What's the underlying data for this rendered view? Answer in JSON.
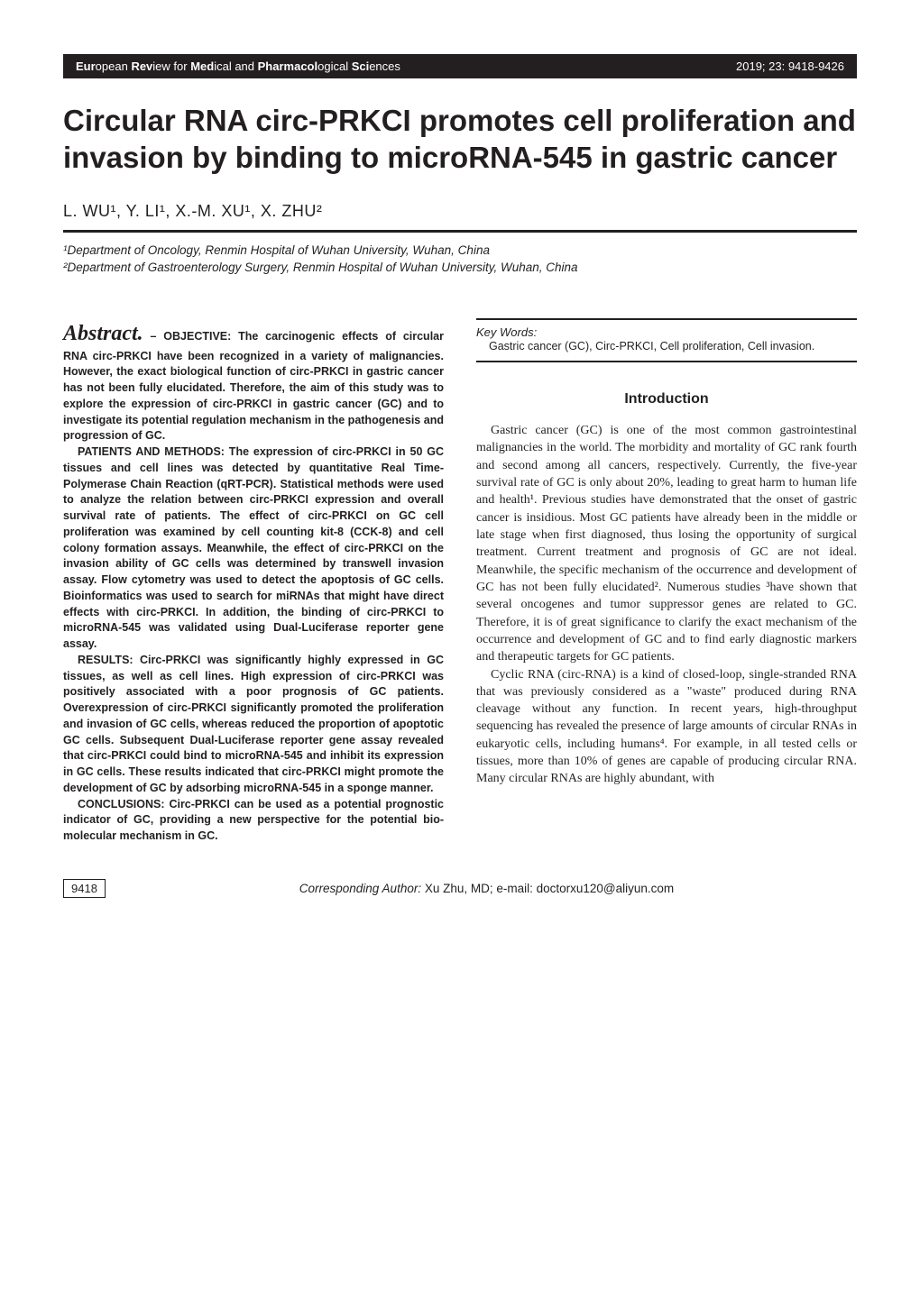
{
  "header": {
    "journal_bold1": "Eur",
    "journal_plain1": "opean ",
    "journal_bold2": "Rev",
    "journal_plain2": "iew for ",
    "journal_bold3": "Med",
    "journal_plain3": "ical and ",
    "journal_bold4": "Pharmacol",
    "journal_plain4": "ogical ",
    "journal_bold5": "Sci",
    "journal_plain5": "ences",
    "issue": "2019; 23: 9418-9426"
  },
  "title": "Circular RNA circ-PRKCI promotes cell proliferation and invasion by binding to microRNA-545 in gastric cancer",
  "authors": "L. WU¹, Y. LI¹, X.-M. XU¹, X. ZHU²",
  "affiliations": {
    "a1": "¹Department of Oncology, Renmin Hospital of Wuhan University, Wuhan, China",
    "a2": "²Department of Gastroenterology Surgery, Renmin Hospital of Wuhan University, Wuhan, China"
  },
  "abstract": {
    "label": "Abstract.",
    "objective_label": " – OBJECTIVE:",
    "objective": " The carcinogenic effects of circular RNA circ-PRKCI have been recognized in a variety of malignancies. However, the exact biological function of circ-PRKCI in gastric cancer has not been fully elucidated. Therefore, the aim of this study was to explore the expression of circ-PRKCI in gastric cancer (GC) and to investigate its potential regulation mechanism in the pathogenesis and progression of GC.",
    "patients_label": "PATIENTS AND METHODS:",
    "patients": " The expression of circ-PRKCI in 50 GC tissues and cell lines was detected by quantitative Real Time-Polymerase Chain Reaction (qRT-PCR). Statistical methods were used to analyze the relation between circ-PRKCI expression and overall survival rate of patients. The effect of circ-PRKCI on GC cell proliferation was examined by cell counting kit-8 (CCK-8) and cell colony formation assays. Meanwhile, the effect of circ-PRKCI on the invasion ability of GC cells was determined by transwell invasion assay. Flow cytometry was used to detect the apoptosis of GC cells. Bioinformatics was used to search for miRNAs that might have direct effects with circ-PRKCI. In addition, the binding of circ-PRKCI to microRNA-545 was validated using Dual-Luciferase reporter gene assay.",
    "results_label": "RESULTS:",
    "results": " Circ-PRKCI was significantly highly expressed in GC tissues, as well as cell lines. High expression of circ-PRKCI was positively associated with a poor prognosis of GC patients. Overexpression of circ-PRKCI significantly promoted the proliferation and invasion of GC cells, whereas reduced the proportion of apoptotic GC cells. Subsequent Dual-Luciferase reporter gene assay revealed that circ-PRKCI could bind to microRNA-545 and inhibit its expression in GC cells. These results indicated that circ-PRKCI might promote the development of GC by adsorbing microRNA-545 in a sponge manner.",
    "conclusions_label": "CONCLUSIONS:",
    "conclusions": " Circ-PRKCI can be used as a potential prognostic indicator of GC, providing a new perspective for the potential bio-molecular mechanism in GC."
  },
  "keywords": {
    "label": "Key Words:",
    "text": "Gastric cancer (GC), Circ-PRKCI, Cell proliferation, Cell invasion."
  },
  "intro": {
    "heading": "Introduction",
    "p1": "Gastric cancer (GC) is one of the most common gastrointestinal malignancies in the world. The morbidity and mortality of GC rank fourth and second among all cancers, respectively. Currently, the five-year survival rate of GC is only about 20%, leading to great harm to human life and health¹. Previous studies have demonstrated that the onset of gastric cancer is insidious. Most GC patients have already been in the middle or late stage when first diagnosed, thus losing the opportunity of surgical treatment. Current treatment and prognosis of GC are not ideal. Meanwhile, the specific mechanism of the occurrence and development of GC has not been fully elucidated². Numerous studies ³have shown that several oncogenes and tumor suppressor genes are related to GC. Therefore, it is of great significance to clarify the exact mechanism of the occurrence and development of GC and to find early diagnostic markers and therapeutic targets for GC patients.",
    "p2": "Cyclic RNA (circ-RNA) is a kind of closed-loop, single-stranded RNA that was previously considered as a \"waste\" produced during RNA cleavage without any function. In recent years, high-throughput sequencing has revealed the presence of large amounts of circular RNAs in eukaryotic cells, including humans⁴. For example, in all tested cells or tissues, more than 10% of genes are capable of producing circular RNA. Many circular RNAs are highly abundant, with"
  },
  "footer": {
    "page_number": "9418",
    "corresponding_label": "Corresponding Author:",
    "corresponding_text": " Xu Zhu, MD; e-mail: doctorxu120@aliyun.com"
  },
  "colors": {
    "text": "#231f20",
    "background": "#ffffff",
    "bar_bg": "#231f20",
    "bar_text": "#ffffff"
  }
}
